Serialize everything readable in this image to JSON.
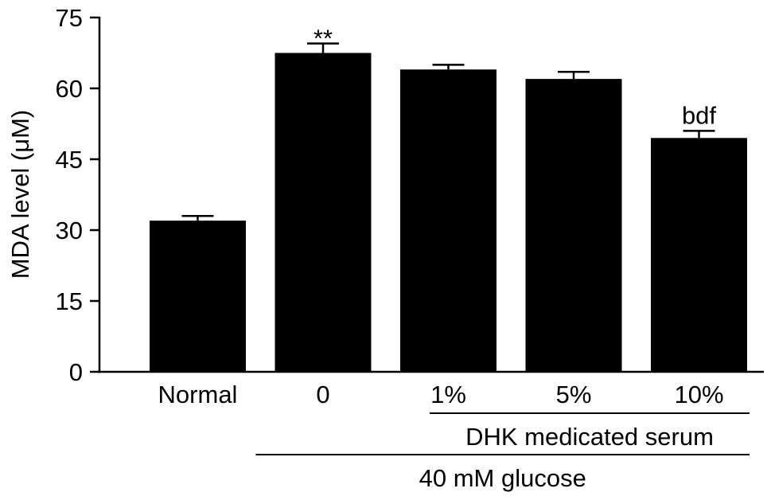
{
  "chart_data": {
    "type": "bar",
    "categories": [
      "Normal",
      "0",
      "1%",
      "5%",
      "10%"
    ],
    "values": [
      32,
      67.5,
      64,
      62,
      49.5
    ],
    "errors": [
      1,
      2,
      1,
      1.5,
      1.5
    ],
    "annotations": [
      "",
      "**",
      "",
      "",
      "bdf"
    ],
    "ylabel": "MDA level (μM)",
    "ylim": [
      0,
      75
    ],
    "yticks": [
      0,
      15,
      30,
      45,
      60,
      75
    ],
    "grid": false,
    "bar_color": "#000000",
    "groups": [
      {
        "label": "DHK medicated serum",
        "category_indices": [
          2,
          3,
          4
        ]
      },
      {
        "label": "40 mM glucose",
        "category_indices": [
          1,
          2,
          3,
          4
        ]
      }
    ]
  }
}
